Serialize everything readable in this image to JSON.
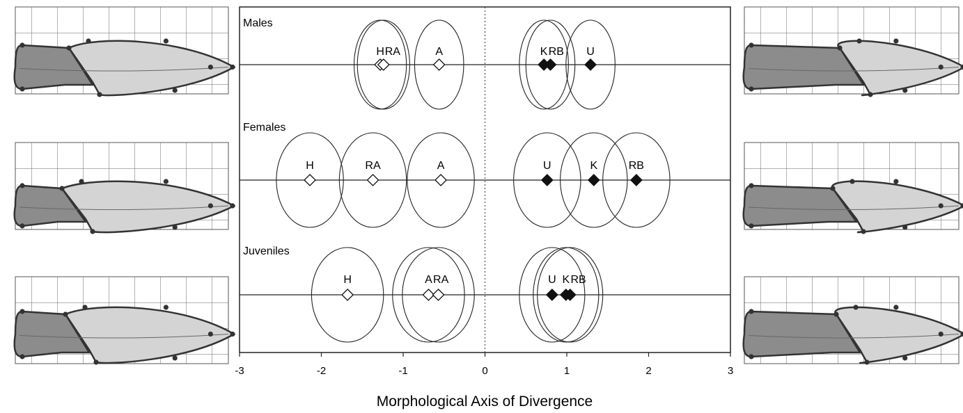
{
  "chart_data": {
    "type": "scatter",
    "xlabel": "Morphological Axis of Divergence",
    "xlim": [
      -3,
      3
    ],
    "xticks": [
      "-3",
      "-2",
      "-1",
      "0",
      "1",
      "2",
      "3"
    ],
    "reference_line_x": 0,
    "panels": [
      {
        "name": "Males",
        "points": [
          {
            "label": "H",
            "x": -1.28,
            "ellipse_half_width": 0.32,
            "filled": false
          },
          {
            "label": "RA",
            "x": -1.24,
            "ellipse_half_width": 0.32,
            "filled": false
          },
          {
            "label": "A",
            "x": -0.56,
            "ellipse_half_width": 0.3,
            "filled": false
          },
          {
            "label": "K",
            "x": 0.72,
            "ellipse_half_width": 0.3,
            "filled": true
          },
          {
            "label": "RB",
            "x": 0.8,
            "ellipse_half_width": 0.3,
            "filled": true
          },
          {
            "label": "U",
            "x": 1.29,
            "ellipse_half_width": 0.3,
            "filled": true
          }
        ]
      },
      {
        "name": "Females",
        "points": [
          {
            "label": "H",
            "x": -2.14,
            "ellipse_half_width": 0.41,
            "filled": false
          },
          {
            "label": "RA",
            "x": -1.37,
            "ellipse_half_width": 0.41,
            "filled": false
          },
          {
            "label": "A",
            "x": -0.54,
            "ellipse_half_width": 0.41,
            "filled": false
          },
          {
            "label": "U",
            "x": 0.76,
            "ellipse_half_width": 0.41,
            "filled": true
          },
          {
            "label": "K",
            "x": 1.33,
            "ellipse_half_width": 0.41,
            "filled": true
          },
          {
            "label": "RB",
            "x": 1.85,
            "ellipse_half_width": 0.41,
            "filled": true
          }
        ]
      },
      {
        "name": "Juveniles",
        "points": [
          {
            "label": "H",
            "x": -1.68,
            "ellipse_half_width": 0.44,
            "filled": false
          },
          {
            "label": "A",
            "x": -0.69,
            "ellipse_half_width": 0.44,
            "filled": false
          },
          {
            "label": "RA",
            "x": -0.57,
            "ellipse_half_width": 0.44,
            "filled": false
          },
          {
            "label": "U",
            "x": 0.82,
            "ellipse_half_width": 0.4,
            "filled": true
          },
          {
            "label": "K",
            "x": 0.99,
            "ellipse_half_width": 0.4,
            "filled": true
          },
          {
            "label": "RB",
            "x": 1.04,
            "ellipse_half_width": 0.4,
            "filled": true
          }
        ]
      }
    ]
  },
  "colors": {
    "axis": "#222222",
    "fish_dark": "#8c8c8c",
    "fish_light": "#d4d4d4",
    "grid": "#555555"
  }
}
